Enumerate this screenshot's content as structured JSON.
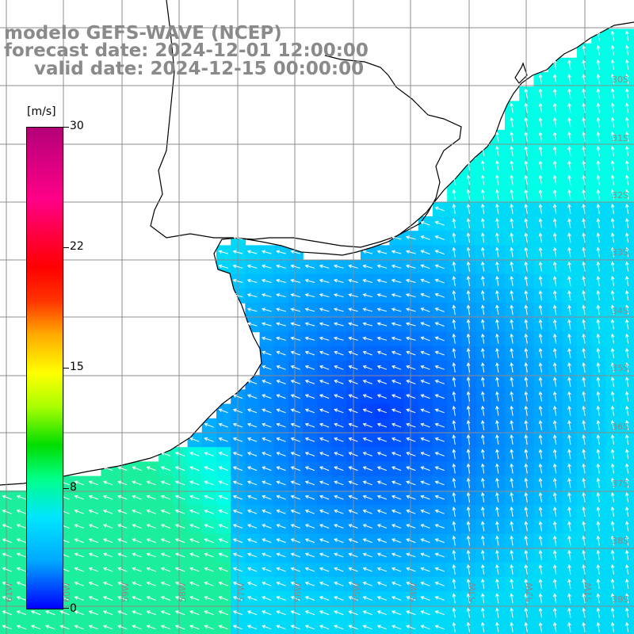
{
  "header": {
    "line1": "modelo GEFS-WAVE (NCEP)",
    "line2": "forecast date: 2024-12-01 12:00:00",
    "line3": "valid date: 2024-12-15 00:00:00"
  },
  "colorbar": {
    "unit": "[m/s]",
    "ticks": [
      "30",
      "22",
      "15",
      "8",
      "0"
    ],
    "min": 0,
    "max": 30,
    "colors": [
      "#0000ff",
      "#00aaff",
      "#00e6ff",
      "#00ff88",
      "#00dd00",
      "#aaff00",
      "#ffff00",
      "#ffaa00",
      "#ff3300",
      "#ff0000",
      "#ff0088",
      "#b40078"
    ]
  },
  "map": {
    "longitude_labels": [
      "61W",
      "60W",
      "59W",
      "58W",
      "57W",
      "56W",
      "55W",
      "54W",
      "53W",
      "52W",
      "51W"
    ],
    "latitude_labels": [
      "30S",
      "31S",
      "32S",
      "33S",
      "34S",
      "35S",
      "36S",
      "37S",
      "38S",
      "39S"
    ],
    "colors": {
      "land": "#ffffff",
      "coast": "#000000",
      "grid": "#8c8c8c",
      "arrow": "#ffffff",
      "labels": "#8a8a8a"
    }
  }
}
